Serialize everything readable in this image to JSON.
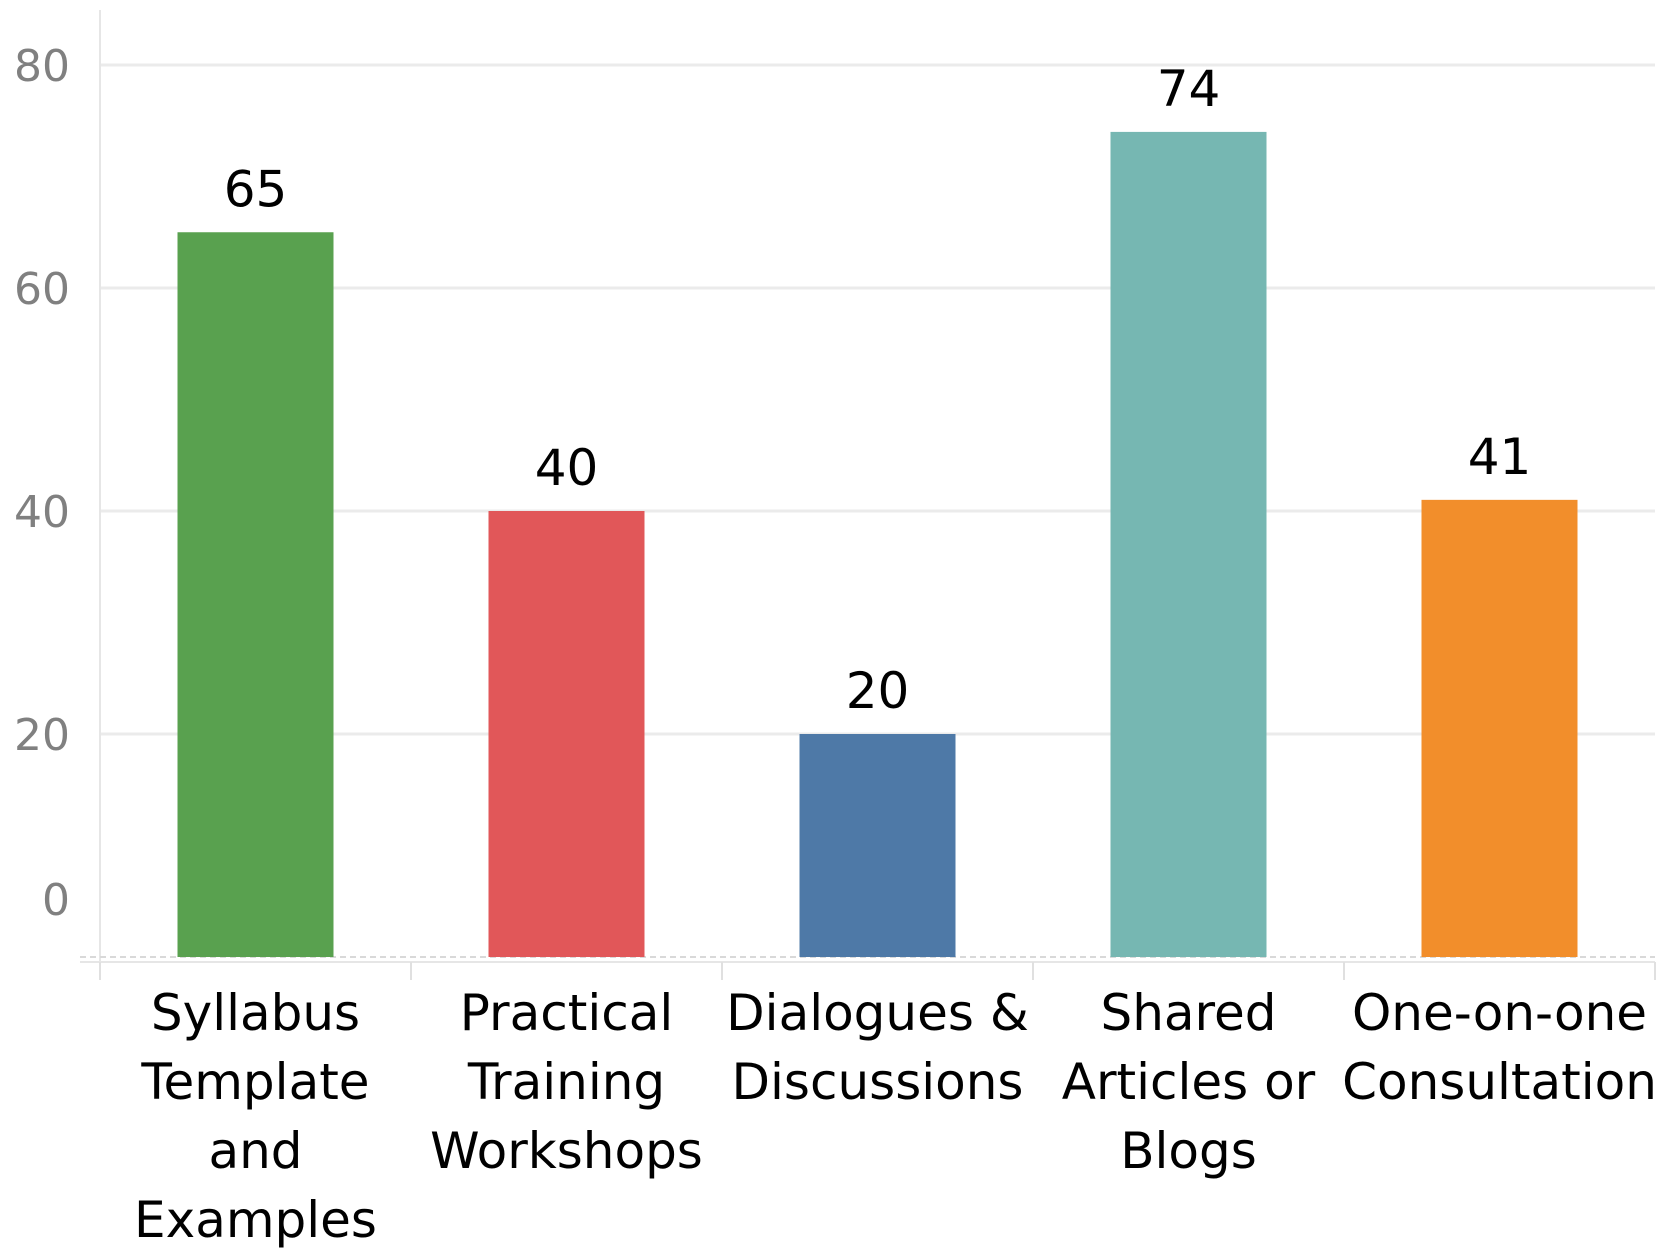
{
  "chart_data": {
    "type": "bar",
    "title": "",
    "xlabel": "",
    "ylabel": "",
    "ylim": [
      0,
      80
    ],
    "yticks": [
      0,
      20,
      40,
      60,
      80
    ],
    "grid": true,
    "categories": [
      "Syllabus Template and Examples",
      "Practical Training Workshops",
      "Dialogues & Discussions",
      "Shared Articles or Blogs",
      "One-on-one Consultation"
    ],
    "category_lines": [
      [
        "Syllabus",
        "Template",
        "and",
        "Examples"
      ],
      [
        "Practical",
        "Training",
        "Workshops"
      ],
      [
        "Dialogues &",
        "Discussions"
      ],
      [
        "Shared",
        "Articles or",
        "Blogs"
      ],
      [
        "One-on-one",
        "Consultation"
      ]
    ],
    "values": [
      65,
      40,
      20,
      74,
      41
    ],
    "colors": [
      "#59a14f",
      "#e15759",
      "#4e79a7",
      "#76b7b2",
      "#f28e2b"
    ]
  }
}
